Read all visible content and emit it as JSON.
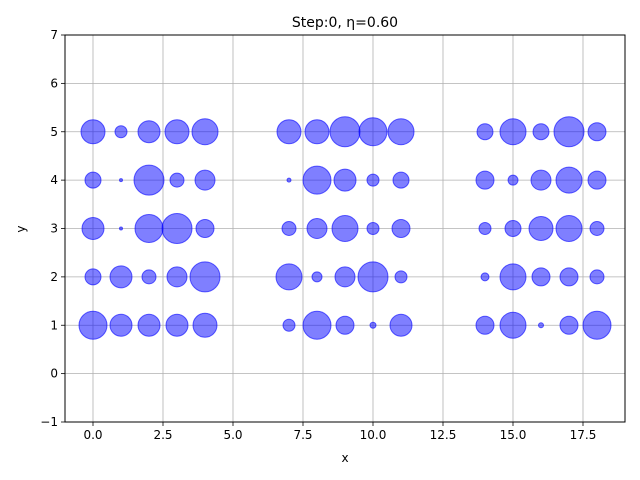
{
  "chart_data": {
    "type": "scatter",
    "title": "Step:0, η=0.60",
    "xlabel": "x",
    "ylabel": "y",
    "xlim": [
      -1,
      19
    ],
    "ylim": [
      -1,
      7
    ],
    "xticks": [
      0.0,
      2.5,
      5.0,
      7.5,
      10.0,
      12.5,
      15.0,
      17.5
    ],
    "xtick_labels": [
      "0.0",
      "2.5",
      "5.0",
      "7.5",
      "10.0",
      "12.5",
      "15.0",
      "17.5"
    ],
    "yticks": [
      -1,
      0,
      1,
      2,
      3,
      4,
      5,
      6,
      7
    ],
    "ytick_labels": [
      "−1",
      "0",
      "1",
      "2",
      "3",
      "4",
      "5",
      "6",
      "7"
    ],
    "grid": true,
    "marker_color": "#0000ff",
    "marker_edge_color": "#0000ff",
    "marker_alpha": 0.5,
    "points": [
      {
        "x": 0,
        "y": 5,
        "size": 12
      },
      {
        "x": 1,
        "y": 5,
        "size": 6
      },
      {
        "x": 2,
        "y": 5,
        "size": 11
      },
      {
        "x": 3,
        "y": 5,
        "size": 12
      },
      {
        "x": 4,
        "y": 5,
        "size": 13
      },
      {
        "x": 7,
        "y": 5,
        "size": 12
      },
      {
        "x": 8,
        "y": 5,
        "size": 12
      },
      {
        "x": 9,
        "y": 5,
        "size": 15
      },
      {
        "x": 10,
        "y": 5,
        "size": 14
      },
      {
        "x": 11,
        "y": 5,
        "size": 13
      },
      {
        "x": 14,
        "y": 5,
        "size": 8
      },
      {
        "x": 15,
        "y": 5,
        "size": 13
      },
      {
        "x": 16,
        "y": 5,
        "size": 8
      },
      {
        "x": 17,
        "y": 5,
        "size": 15
      },
      {
        "x": 18,
        "y": 5,
        "size": 9
      },
      {
        "x": 0,
        "y": 4,
        "size": 8
      },
      {
        "x": 1,
        "y": 4,
        "size": 1.5
      },
      {
        "x": 2,
        "y": 4,
        "size": 15
      },
      {
        "x": 3,
        "y": 4,
        "size": 7
      },
      {
        "x": 4,
        "y": 4,
        "size": 10
      },
      {
        "x": 7,
        "y": 4,
        "size": 2
      },
      {
        "x": 8,
        "y": 4,
        "size": 14
      },
      {
        "x": 9,
        "y": 4,
        "size": 11
      },
      {
        "x": 10,
        "y": 4,
        "size": 6
      },
      {
        "x": 11,
        "y": 4,
        "size": 8
      },
      {
        "x": 14,
        "y": 4,
        "size": 9
      },
      {
        "x": 15,
        "y": 4,
        "size": 5
      },
      {
        "x": 16,
        "y": 4,
        "size": 10
      },
      {
        "x": 17,
        "y": 4,
        "size": 13
      },
      {
        "x": 18,
        "y": 4,
        "size": 9
      },
      {
        "x": 0,
        "y": 3,
        "size": 11
      },
      {
        "x": 1,
        "y": 3,
        "size": 1.5
      },
      {
        "x": 2,
        "y": 3,
        "size": 14
      },
      {
        "x": 3,
        "y": 3,
        "size": 15
      },
      {
        "x": 4,
        "y": 3,
        "size": 9
      },
      {
        "x": 7,
        "y": 3,
        "size": 7
      },
      {
        "x": 8,
        "y": 3,
        "size": 10
      },
      {
        "x": 9,
        "y": 3,
        "size": 13
      },
      {
        "x": 10,
        "y": 3,
        "size": 6
      },
      {
        "x": 11,
        "y": 3,
        "size": 9
      },
      {
        "x": 14,
        "y": 3,
        "size": 6
      },
      {
        "x": 15,
        "y": 3,
        "size": 8
      },
      {
        "x": 16,
        "y": 3,
        "size": 12
      },
      {
        "x": 17,
        "y": 3,
        "size": 13
      },
      {
        "x": 18,
        "y": 3,
        "size": 7
      },
      {
        "x": 0,
        "y": 2,
        "size": 8
      },
      {
        "x": 1,
        "y": 2,
        "size": 11
      },
      {
        "x": 2,
        "y": 2,
        "size": 7
      },
      {
        "x": 3,
        "y": 2,
        "size": 10
      },
      {
        "x": 4,
        "y": 2,
        "size": 15
      },
      {
        "x": 7,
        "y": 2,
        "size": 13
      },
      {
        "x": 8,
        "y": 2,
        "size": 5
      },
      {
        "x": 9,
        "y": 2,
        "size": 10
      },
      {
        "x": 10,
        "y": 2,
        "size": 15
      },
      {
        "x": 11,
        "y": 2,
        "size": 6
      },
      {
        "x": 14,
        "y": 2,
        "size": 4
      },
      {
        "x": 15,
        "y": 2,
        "size": 13
      },
      {
        "x": 16,
        "y": 2,
        "size": 9
      },
      {
        "x": 17,
        "y": 2,
        "size": 9
      },
      {
        "x": 18,
        "y": 2,
        "size": 7
      },
      {
        "x": 0,
        "y": 1,
        "size": 14
      },
      {
        "x": 1,
        "y": 1,
        "size": 11
      },
      {
        "x": 2,
        "y": 1,
        "size": 11
      },
      {
        "x": 3,
        "y": 1,
        "size": 11
      },
      {
        "x": 4,
        "y": 1,
        "size": 12
      },
      {
        "x": 7,
        "y": 1,
        "size": 6
      },
      {
        "x": 8,
        "y": 1,
        "size": 14
      },
      {
        "x": 9,
        "y": 1,
        "size": 9
      },
      {
        "x": 10,
        "y": 1,
        "size": 3
      },
      {
        "x": 11,
        "y": 1,
        "size": 11
      },
      {
        "x": 14,
        "y": 1,
        "size": 9
      },
      {
        "x": 15,
        "y": 1,
        "size": 13
      },
      {
        "x": 16,
        "y": 1,
        "size": 2.5
      },
      {
        "x": 17,
        "y": 1,
        "size": 9
      },
      {
        "x": 18,
        "y": 1,
        "size": 14
      }
    ]
  }
}
